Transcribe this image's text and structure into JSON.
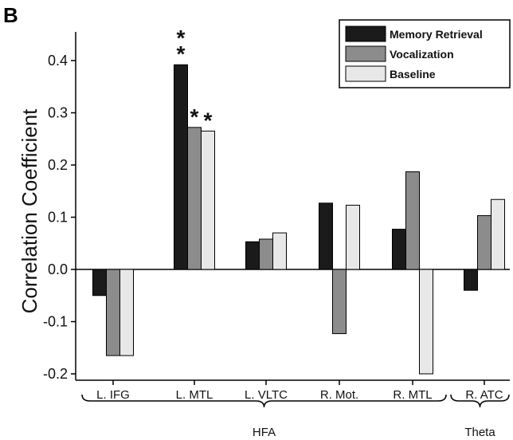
{
  "chart_data": {
    "type": "bar",
    "panel_label": "B",
    "ylabel": "Correlation Coefficient",
    "xlabel": "",
    "ylim": [
      -0.2,
      0.4
    ],
    "yticks": [
      -0.2,
      -0.1,
      0.0,
      0.1,
      0.2,
      0.3,
      0.4
    ],
    "ytick_labels": [
      "-0.2",
      "-0.1",
      "0.0",
      "0.1",
      "0.2",
      "0.3",
      "0.4"
    ],
    "categories": [
      "L. IFG",
      "L. MTL",
      "L. VLTC",
      "R. Mot.",
      "R. MTL",
      "R. ATC"
    ],
    "series": [
      {
        "name": "Memory Retrieval",
        "color": "#1a1a1a",
        "values": [
          -0.05,
          0.392,
          0.053,
          0.127,
          0.077,
          -0.04
        ]
      },
      {
        "name": "Vocalization",
        "color": "#8c8c8c",
        "values": [
          -0.165,
          0.272,
          0.058,
          -0.123,
          0.187,
          0.103
        ]
      },
      {
        "name": "Baseline",
        "color": "#e8e8e8",
        "values": [
          -0.165,
          0.265,
          0.07,
          0.123,
          -0.2,
          0.134
        ]
      }
    ],
    "significance": [
      {
        "category": "L. MTL",
        "series": "Memory Retrieval",
        "label": "**"
      },
      {
        "category": "L. MTL",
        "series": "Vocalization",
        "label": "*"
      },
      {
        "category": "L. MTL",
        "series": "Baseline",
        "label": "*"
      }
    ],
    "groups": [
      {
        "label": "HFA",
        "categories": [
          "L. IFG",
          "L. MTL",
          "L. VLTC",
          "R. Mot.",
          "R. MTL"
        ]
      },
      {
        "label": "Theta",
        "categories": [
          "R. ATC"
        ]
      }
    ],
    "legend_position": "top-right",
    "grid": false
  }
}
